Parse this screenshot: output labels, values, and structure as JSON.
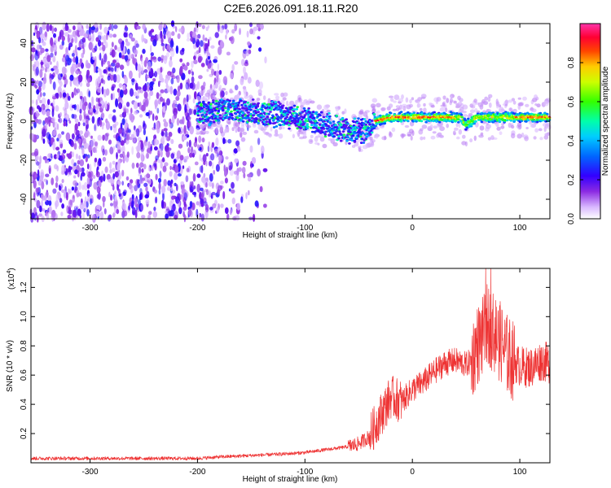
{
  "title": "C2E6.2026.091.18.11.R20",
  "chart_data": [
    {
      "type": "heatmap",
      "name": "spectrogram",
      "xlabel": "Height of straight line (km)",
      "ylabel": "Frequency (Hz)",
      "xlim": [
        -355,
        128
      ],
      "ylim": [
        -50,
        50
      ],
      "xticks": [
        -300,
        -200,
        -100,
        0,
        100
      ],
      "xtick_labels": [
        "-300",
        "-200",
        "-100",
        "0",
        "100"
      ],
      "yticks": [
        -40,
        -20,
        0,
        20,
        40
      ],
      "ytick_labels": [
        "-40",
        "-20",
        "0",
        "20",
        "40"
      ],
      "colorbar": {
        "label": "Normalized spectral amplitude",
        "range": [
          0,
          1
        ],
        "ticks": [
          0.0,
          0.2,
          0.4,
          0.6,
          0.8
        ],
        "tick_labels": [
          "0.0",
          "0.2",
          "0.4",
          "0.6",
          "0.8"
        ]
      },
      "band_center_hz": [
        [
          -200,
          3
        ],
        [
          -180,
          6
        ],
        [
          -160,
          5
        ],
        [
          -140,
          4
        ],
        [
          -120,
          3
        ],
        [
          -100,
          1
        ],
        [
          -80,
          -2
        ],
        [
          -60,
          -5
        ],
        [
          -45,
          -5
        ],
        [
          -35,
          0
        ],
        [
          -20,
          2
        ],
        [
          0,
          2
        ],
        [
          20,
          2
        ],
        [
          45,
          2
        ],
        [
          50,
          -2
        ],
        [
          60,
          2
        ],
        [
          80,
          2
        ],
        [
          100,
          2
        ],
        [
          128,
          2
        ]
      ]
    },
    {
      "type": "line",
      "name": "snr",
      "xlabel": "Height of straight line (km)",
      "ylabel": "SNR (10 * v/v)",
      "yscale_label": "(x10",
      "yscale_exp": "4",
      "yscale_close": ")",
      "xlim": [
        -355,
        128
      ],
      "ylim": [
        0,
        1.33
      ],
      "xticks": [
        -300,
        -200,
        -100,
        0,
        100
      ],
      "xtick_labels": [
        "-300",
        "-200",
        "-100",
        "0",
        "100"
      ],
      "yticks": [
        0.2,
        0.4,
        0.6,
        0.8,
        1.0,
        1.2
      ],
      "ytick_labels": [
        "0.2",
        "0.4",
        "0.6",
        "0.8",
        "1.0",
        "1.2"
      ],
      "color": "#ee3333",
      "series": [
        {
          "name": "SNR",
          "x": [
            -355,
            -300,
            -250,
            -200,
            -180,
            -150,
            -120,
            -100,
            -80,
            -60,
            -50,
            -40,
            -30,
            -20,
            -10,
            0,
            10,
            20,
            30,
            40,
            50,
            55,
            60,
            65,
            70,
            75,
            80,
            90,
            100,
            110,
            120,
            128
          ],
          "y": [
            0.03,
            0.03,
            0.03,
            0.03,
            0.04,
            0.05,
            0.06,
            0.07,
            0.09,
            0.11,
            0.13,
            0.18,
            0.32,
            0.45,
            0.42,
            0.5,
            0.55,
            0.62,
            0.68,
            0.7,
            0.67,
            0.7,
            0.8,
            0.85,
            0.95,
            0.9,
            0.85,
            0.72,
            0.66,
            0.65,
            0.7,
            0.68
          ]
        }
      ]
    }
  ]
}
